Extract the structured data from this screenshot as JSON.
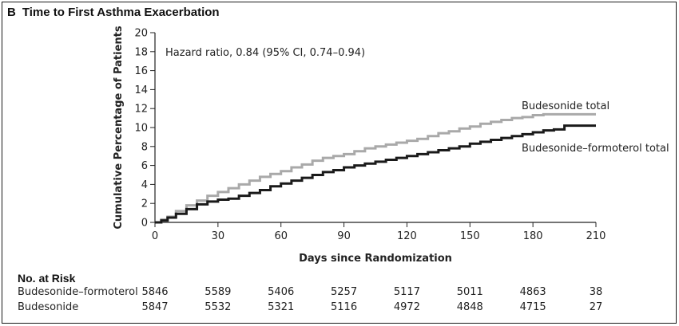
{
  "panel": {
    "letter": "B",
    "title": "Time to First Asthma Exacerbation"
  },
  "chart_data": {
    "type": "line",
    "subtype": "kaplan-meier-cumulative-incidence",
    "xlabel": "Days since Randomization",
    "ylabel": "Cumulative Percentage of Patients",
    "xlim": [
      0,
      210
    ],
    "ylim": [
      0,
      20
    ],
    "x_ticks": [
      0,
      30,
      60,
      90,
      120,
      150,
      180,
      210
    ],
    "y_ticks": [
      0,
      2,
      4,
      6,
      8,
      10,
      12,
      14,
      16,
      18,
      20
    ],
    "grid": false,
    "annotation": "Hazard ratio, 0.84 (95% CI, 0.74–0.94)",
    "series": [
      {
        "name": "Budesonide total",
        "color": "#a9a9a9",
        "x": [
          0,
          3,
          6,
          10,
          15,
          20,
          25,
          30,
          35,
          40,
          45,
          50,
          55,
          60,
          65,
          70,
          75,
          80,
          85,
          90,
          95,
          100,
          105,
          110,
          115,
          120,
          125,
          130,
          135,
          140,
          145,
          150,
          155,
          160,
          165,
          170,
          175,
          180,
          185,
          190,
          195,
          200,
          210
        ],
        "y": [
          0,
          0.3,
          0.6,
          1.2,
          1.8,
          2.3,
          2.8,
          3.2,
          3.6,
          4.0,
          4.4,
          4.8,
          5.1,
          5.4,
          5.8,
          6.1,
          6.5,
          6.8,
          7.0,
          7.2,
          7.5,
          7.8,
          8.0,
          8.2,
          8.4,
          8.6,
          8.8,
          9.1,
          9.4,
          9.6,
          9.9,
          10.1,
          10.4,
          10.6,
          10.8,
          11.0,
          11.1,
          11.3,
          11.4,
          11.4,
          11.4,
          11.4,
          11.4
        ]
      },
      {
        "name": "Budesonide–formoterol total",
        "color": "#1a1a1a",
        "x": [
          0,
          3,
          6,
          10,
          15,
          20,
          25,
          30,
          35,
          40,
          45,
          50,
          55,
          60,
          65,
          70,
          75,
          80,
          85,
          90,
          95,
          100,
          105,
          110,
          115,
          120,
          125,
          130,
          135,
          140,
          145,
          150,
          155,
          160,
          165,
          170,
          175,
          180,
          185,
          190,
          194,
          195,
          200,
          210
        ],
        "y": [
          0,
          0.2,
          0.5,
          0.9,
          1.4,
          1.9,
          2.2,
          2.4,
          2.5,
          2.8,
          3.1,
          3.4,
          3.8,
          4.1,
          4.4,
          4.7,
          5.0,
          5.3,
          5.5,
          5.8,
          6.0,
          6.2,
          6.4,
          6.6,
          6.8,
          7.0,
          7.2,
          7.4,
          7.6,
          7.8,
          8.0,
          8.3,
          8.5,
          8.7,
          8.9,
          9.1,
          9.3,
          9.5,
          9.7,
          9.8,
          9.8,
          10.2,
          10.2,
          10.2
        ]
      }
    ]
  },
  "risk_table": {
    "heading": "No. at Risk",
    "days": [
      0,
      30,
      60,
      90,
      120,
      150,
      180,
      210
    ],
    "rows": [
      {
        "label": "Budesonide–formoterol",
        "values": [
          "5846",
          "5589",
          "5406",
          "5257",
          "5117",
          "5011",
          "4863",
          "38"
        ]
      },
      {
        "label": "Budesonide",
        "values": [
          "5847",
          "5532",
          "5321",
          "5116",
          "4972",
          "4848",
          "4715",
          "27"
        ]
      }
    ]
  }
}
